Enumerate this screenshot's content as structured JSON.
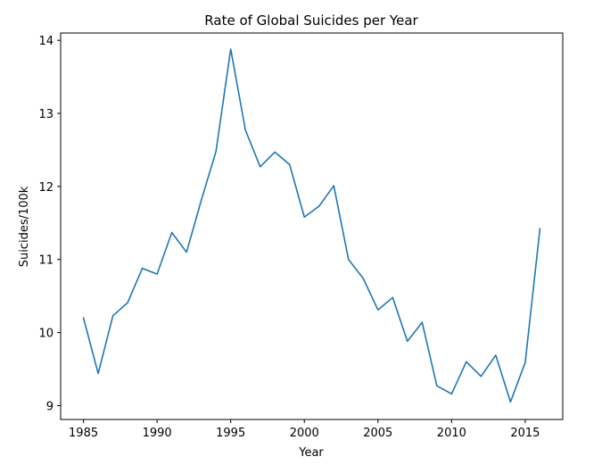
{
  "chart_data": {
    "type": "line",
    "title": "Rate of Global Suicides per Year",
    "xlabel": "Year",
    "ylabel": "Suicides/100k",
    "xlim": [
      1983.45,
      2017.55
    ],
    "ylim": [
      8.81,
      14.1
    ],
    "xticks": [
      1985,
      1990,
      1995,
      2000,
      2005,
      2010,
      2015
    ],
    "yticks": [
      9,
      10,
      11,
      12,
      13,
      14
    ],
    "grid": false,
    "legend": "none",
    "series": [
      {
        "color": "#1f77b4",
        "x": [
          1985,
          1986,
          1987,
          1988,
          1989,
          1990,
          1991,
          1992,
          1993,
          1994,
          1995,
          1996,
          1997,
          1998,
          1999,
          2000,
          2001,
          2002,
          2003,
          2004,
          2005,
          2006,
          2007,
          2008,
          2009,
          2010,
          2011,
          2012,
          2013,
          2014,
          2015,
          2016
        ],
        "values": [
          10.2,
          9.44,
          10.23,
          10.41,
          10.88,
          10.8,
          11.37,
          11.1,
          11.81,
          12.48,
          13.88,
          12.77,
          12.27,
          12.47,
          12.3,
          11.58,
          11.73,
          12.01,
          11.0,
          10.74,
          10.31,
          10.48,
          9.88,
          10.14,
          9.27,
          9.16,
          9.6,
          9.4,
          9.69,
          9.05,
          9.59,
          11.42
        ]
      }
    ]
  }
}
